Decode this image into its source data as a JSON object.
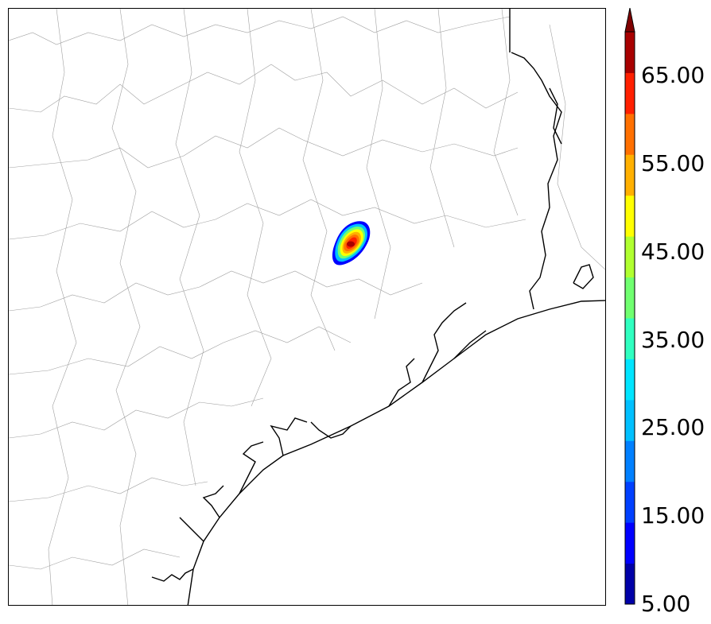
{
  "colorbar": {
    "min": 5,
    "max": 70,
    "step": 5,
    "extend": "max",
    "labels": [
      {
        "value": 5,
        "text": "5.00"
      },
      {
        "value": 15,
        "text": "15.00"
      },
      {
        "value": 25,
        "text": "25.00"
      },
      {
        "value": 35,
        "text": "35.00"
      },
      {
        "value": 45,
        "text": "45.00"
      },
      {
        "value": 55,
        "text": "55.00"
      },
      {
        "value": 65,
        "text": "65.00"
      }
    ],
    "colors": [
      "#0000a8",
      "#0000ff",
      "#0040ff",
      "#0080ff",
      "#00c0ff",
      "#00e5ff",
      "#30ffc0",
      "#70ff70",
      "#b0ff30",
      "#ffff00",
      "#ffb000",
      "#ff7000",
      "#ff2000",
      "#a80000"
    ],
    "extend_color": "#800000"
  },
  "map": {
    "county_line_color": "#a0a0a0",
    "coast_line_color": "#000000",
    "storm_cell_peak_value": 65
  }
}
